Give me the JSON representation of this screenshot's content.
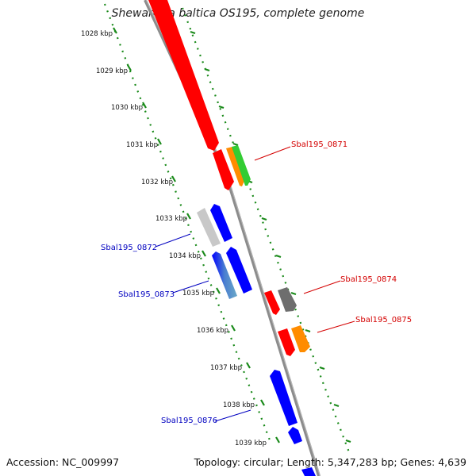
{
  "title": "Shewanella baltica OS195, complete genome",
  "footer": {
    "accession": "Accession: NC_009997",
    "summary": "Topology: circular; Length: 5,347,283 bp; Genes: 4,639"
  },
  "colors": {
    "backbone": "#8c8c8c",
    "ticks": "#1a8a1a",
    "forward_label": "#d40000",
    "reverse_label": "#0000c0"
  },
  "kbp_labels": [
    "1028 kbp",
    "1029 kbp",
    "1030 kbp",
    "1031 kbp",
    "1032 kbp",
    "1033 kbp",
    "1034 kbp",
    "1035 kbp",
    "1036 kbp",
    "1037 kbp",
    "1038 kbp",
    "1039 kbp"
  ],
  "gene_labels": {
    "g0871": "Sbal195_0871",
    "g0872": "Sbal195_0872",
    "g0873": "Sbal195_0873",
    "g0874": "Sbal195_0874",
    "g0875": "Sbal195_0875",
    "g0876": "Sbal195_0876"
  }
}
